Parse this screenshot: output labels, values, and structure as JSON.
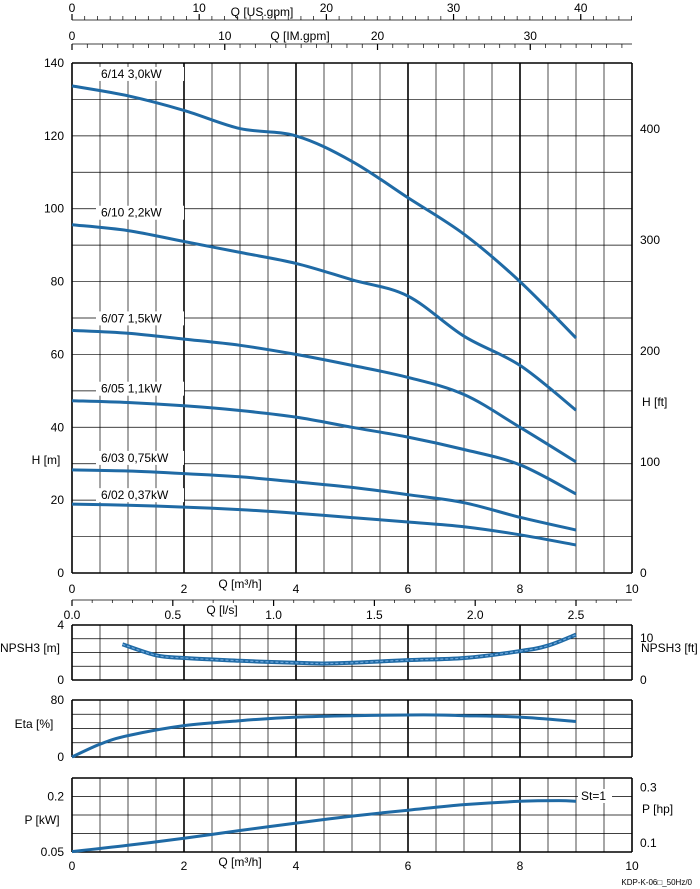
{
  "chart_data": {
    "type": "line",
    "footer": "KDP-K-06□_50Hz/0",
    "top_axes": {
      "us_gpm": {
        "label": "Q [US.gpm]",
        "ticks": [
          "0",
          "10",
          "20",
          "30",
          "40"
        ],
        "values": [
          0,
          10,
          20,
          30,
          40
        ],
        "max": 44.03
      },
      "im_gpm": {
        "label": "Q [IM.gpm]",
        "ticks": [
          "0",
          "10",
          "20",
          "30"
        ],
        "values": [
          0,
          10,
          20,
          30
        ],
        "max": 36.66
      }
    },
    "head_panel": {
      "ylabel_left": "H [m]",
      "ylabel_right": "H [ft]",
      "xlabel": "Q [m³/h]",
      "xlim": [
        0,
        10
      ],
      "ylim": [
        0,
        140
      ],
      "x_ticks": [
        "0",
        "2",
        "4",
        "6",
        "8",
        "10"
      ],
      "x_tick_values": [
        0,
        2,
        4,
        6,
        8,
        10
      ],
      "y_ticks": [
        "0",
        "20",
        "40",
        "60",
        "80",
        "100",
        "120",
        "140"
      ],
      "y_tick_values": [
        0,
        20,
        40,
        60,
        80,
        100,
        120,
        140
      ],
      "right_ticks": [
        "0",
        "100",
        "200",
        "300",
        "400"
      ],
      "right_tick_values_ft": [
        0,
        100,
        200,
        300,
        400
      ],
      "series": [
        {
          "name": "6/14 3,0kW",
          "x": [
            0,
            1,
            2,
            3,
            4,
            5,
            6,
            7,
            8,
            9
          ],
          "y": [
            133.7,
            131,
            127,
            122,
            120,
            113,
            103,
            93,
            80,
            64.5
          ]
        },
        {
          "name": "6/10  2,2kW",
          "x": [
            0,
            1,
            2,
            3,
            4,
            5,
            6,
            7,
            8,
            9
          ],
          "y": [
            95.6,
            94,
            91,
            88,
            85,
            80.5,
            76,
            65,
            57,
            44.7
          ]
        },
        {
          "name": "6/07   1,5kW",
          "x": [
            0,
            1,
            2,
            3,
            4,
            5,
            6,
            7,
            8,
            9
          ],
          "y": [
            66.6,
            65.8,
            64.2,
            62.5,
            60,
            57,
            53.7,
            49,
            40,
            30.5
          ]
        },
        {
          "name": "6/05   1,1kW",
          "x": [
            0,
            1,
            2,
            3,
            4,
            5,
            6,
            7,
            8,
            9
          ],
          "y": [
            47.3,
            46.8,
            45.9,
            44.6,
            42.8,
            40,
            37.3,
            33.9,
            29.7,
            21.7
          ]
        },
        {
          "name": "6/03   0,75kW",
          "x": [
            0,
            1,
            2,
            3,
            4,
            5,
            6,
            7,
            8,
            9
          ],
          "y": [
            28.3,
            28,
            27.3,
            26.4,
            25,
            23.5,
            21.5,
            19.3,
            15.3,
            11.8
          ]
        },
        {
          "name": "6/02   0,37kW",
          "x": [
            0,
            1,
            2,
            3,
            4,
            5,
            6,
            7,
            8,
            9
          ],
          "y": [
            18.9,
            18.6,
            18.1,
            17.4,
            16.4,
            15.2,
            14,
            12.7,
            10.5,
            7.7
          ]
        }
      ]
    },
    "ls_axis": {
      "label": "Q [l/s]",
      "ticks": [
        "0.0",
        "0.5",
        "1.0",
        "1.5",
        "2.0",
        "2.5"
      ],
      "values": [
        0,
        0.5,
        1.0,
        1.5,
        2.0,
        2.5
      ]
    },
    "npsh_panel": {
      "ylabel_left": "NPSH3 [m]",
      "ylabel_right": "NPSH3 [ft]",
      "ylim": [
        0,
        4
      ],
      "y_ticks": [
        "0",
        "4"
      ],
      "y_tick_values": [
        0,
        4
      ],
      "right_ticks": [
        "0",
        "10"
      ],
      "right_tick_values_ft": [
        0,
        10
      ],
      "series": [
        {
          "name": "NPSH3",
          "x": [
            0.9,
            1.5,
            2,
            3,
            4,
            4.5,
            5,
            6,
            7,
            8,
            8.5,
            9
          ],
          "y": [
            2.6,
            1.8,
            1.6,
            1.4,
            1.25,
            1.2,
            1.25,
            1.45,
            1.6,
            2.1,
            2.5,
            3.3
          ]
        }
      ]
    },
    "eta_panel": {
      "ylabel_left": "Eta [%]",
      "ylim": [
        0,
        80
      ],
      "y_ticks": [
        "0",
        "80"
      ],
      "y_tick_values": [
        0,
        80
      ],
      "series": [
        {
          "name": "Eta",
          "x": [
            0,
            0.5,
            1,
            2,
            3,
            4,
            5,
            6,
            6.5,
            7,
            8,
            9
          ],
          "y": [
            0,
            18,
            30,
            44,
            51,
            56,
            58,
            59,
            59,
            58,
            56,
            50
          ]
        }
      ]
    },
    "power_panel": {
      "ylabel_left": "P [kW]",
      "ylabel_right": "P [hp]",
      "xlabel": "Q [m³/h]",
      "annotation": "St=1",
      "xlim": [
        0,
        10
      ],
      "ylim": [
        0.05,
        0.25
      ],
      "x_ticks": [
        "0",
        "2",
        "4",
        "6",
        "8",
        "10"
      ],
      "x_tick_values": [
        0,
        2,
        4,
        6,
        8,
        10
      ],
      "y_ticks": [
        "0.05",
        "0.2"
      ],
      "y_tick_values": [
        0.05,
        0.2
      ],
      "right_ticks": [
        "0.1",
        "0.3"
      ],
      "right_tick_values_hp": [
        0.1,
        0.3
      ],
      "series": [
        {
          "name": "P",
          "x": [
            0,
            1,
            2,
            3,
            4,
            5,
            6,
            7,
            8,
            8.7,
            9
          ],
          "y": [
            0.051,
            0.068,
            0.087,
            0.108,
            0.128,
            0.147,
            0.163,
            0.178,
            0.187,
            0.189,
            0.187
          ]
        }
      ]
    }
  }
}
